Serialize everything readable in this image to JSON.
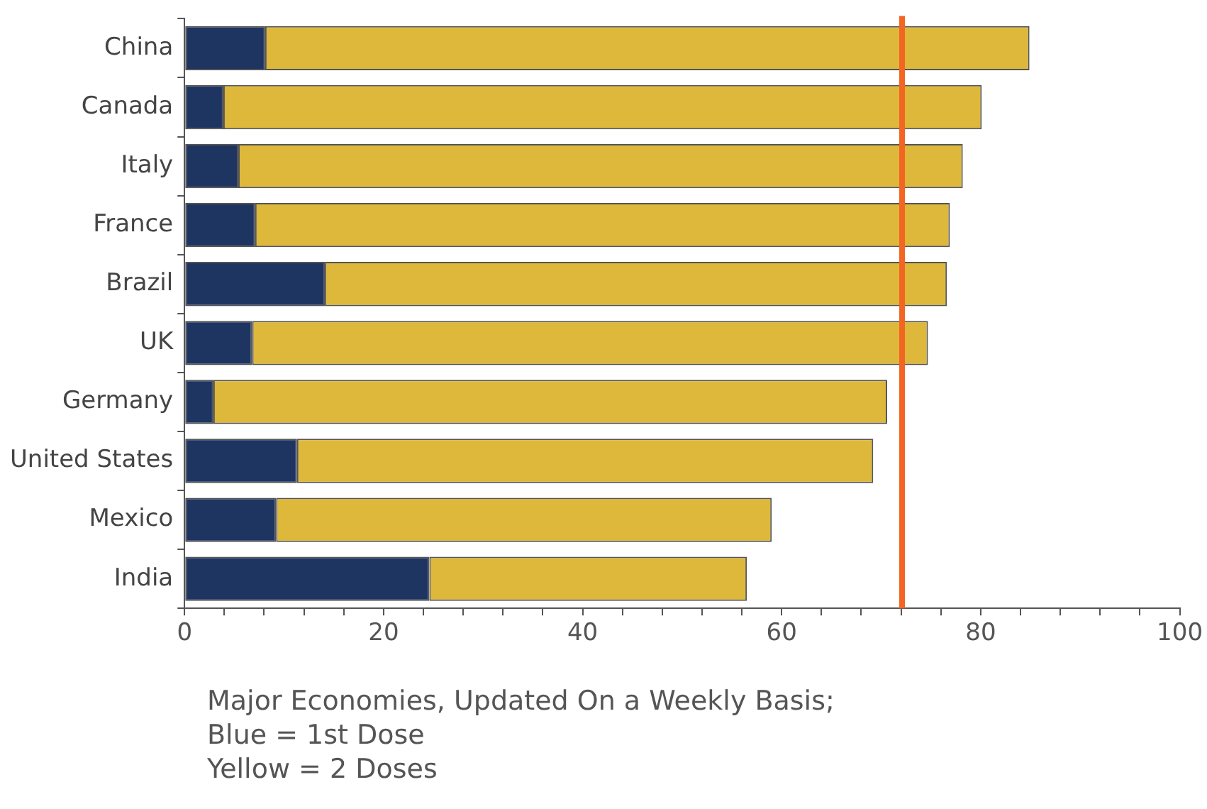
{
  "chart_data": {
    "type": "bar",
    "orientation": "horizontal",
    "stacked": true,
    "categories": [
      "China",
      "Canada",
      "Italy",
      "France",
      "Brazil",
      "UK",
      "Germany",
      "United States",
      "Mexico",
      "India"
    ],
    "series": [
      {
        "color": "#1e3461",
        "values": [
          8.1,
          3.9,
          5.4,
          7.1,
          14.1,
          6.8,
          2.9,
          11.3,
          9.2,
          24.6
        ]
      },
      {
        "color": "#ddb83b",
        "values": [
          76.8,
          76.2,
          72.8,
          69.8,
          62.5,
          67.9,
          67.7,
          57.9,
          49.8,
          31.9
        ]
      }
    ],
    "xlim": [
      0,
      100
    ],
    "xticks": [
      0,
      {
        "value": 4,
        "label": null
      },
      {
        "value": 8,
        "label": null
      },
      {
        "value": 12,
        "label": null
      },
      {
        "value": 16,
        "label": null
      },
      20,
      {
        "value": 24,
        "label": null
      },
      {
        "value": 28,
        "label": null
      },
      {
        "value": 32,
        "label": null
      },
      {
        "value": 36,
        "label": null
      },
      40,
      {
        "value": 44,
        "label": null
      },
      {
        "value": 48,
        "label": null
      },
      {
        "value": 52,
        "label": null
      },
      {
        "value": 56,
        "label": null
      },
      60,
      {
        "value": 64,
        "label": null
      },
      {
        "value": 68,
        "label": null
      },
      {
        "value": 72,
        "label": null
      },
      {
        "value": 76,
        "label": null
      },
      80,
      {
        "value": 84,
        "label": null
      },
      {
        "value": 88,
        "label": null
      },
      {
        "value": 92,
        "label": null
      },
      {
        "value": 96,
        "label": null
      },
      100
    ],
    "ref_lines": [
      {
        "axis": "x",
        "value": 72.1,
        "color": "#f26522"
      }
    ],
    "grid": false,
    "legend": false,
    "annotations": [
      "Major Economies, Updated On a Weekly Basis;",
      "Blue = 1st Dose",
      "Yellow = 2 Doses"
    ]
  }
}
